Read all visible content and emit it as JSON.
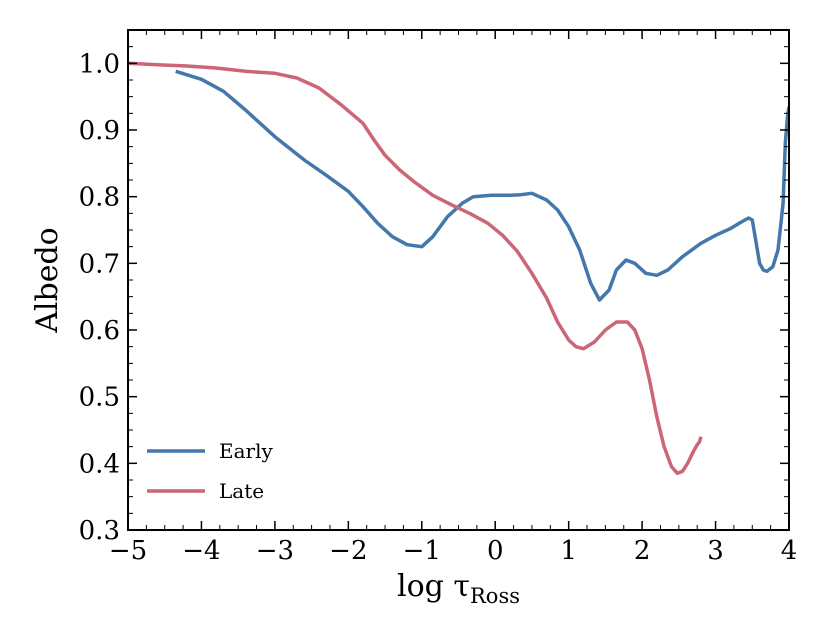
{
  "chart_data": {
    "type": "line",
    "title": "",
    "xlabel": "log τ",
    "xlabel_subscript": "Ross",
    "ylabel": "Albedo",
    "xlim": [
      -5,
      4
    ],
    "ylim": [
      0.3,
      1.05
    ],
    "grid": false,
    "legend": "bottom-left",
    "x_ticks": [
      -5,
      -4,
      -3,
      -2,
      -1,
      0,
      1,
      2,
      3,
      4
    ],
    "x_tick_labels": [
      "−5",
      "−4",
      "−3",
      "−2",
      "−1",
      "0",
      "1",
      "2",
      "3",
      "4"
    ],
    "y_ticks": [
      0.3,
      0.4,
      0.5,
      0.6,
      0.7,
      0.8,
      0.9,
      1.0
    ],
    "y_tick_labels": [
      "0.3",
      "0.4",
      "0.5",
      "0.6",
      "0.7",
      "0.8",
      "0.9",
      "1.0"
    ],
    "series": [
      {
        "name": "Early",
        "color": "#4477aa",
        "points": [
          [
            -4.35,
            0.988
          ],
          [
            -4.0,
            0.976
          ],
          [
            -3.7,
            0.958
          ],
          [
            -3.4,
            0.93
          ],
          [
            -3.0,
            0.89
          ],
          [
            -2.6,
            0.855
          ],
          [
            -2.3,
            0.832
          ],
          [
            -2.0,
            0.808
          ],
          [
            -1.8,
            0.785
          ],
          [
            -1.6,
            0.76
          ],
          [
            -1.4,
            0.74
          ],
          [
            -1.2,
            0.728
          ],
          [
            -1.0,
            0.725
          ],
          [
            -0.85,
            0.74
          ],
          [
            -0.65,
            0.77
          ],
          [
            -0.45,
            0.79
          ],
          [
            -0.3,
            0.8
          ],
          [
            -0.05,
            0.802
          ],
          [
            0.2,
            0.802
          ],
          [
            0.35,
            0.803
          ],
          [
            0.5,
            0.805
          ],
          [
            0.7,
            0.795
          ],
          [
            0.85,
            0.78
          ],
          [
            1.0,
            0.755
          ],
          [
            1.15,
            0.72
          ],
          [
            1.3,
            0.67
          ],
          [
            1.42,
            0.645
          ],
          [
            1.55,
            0.66
          ],
          [
            1.65,
            0.69
          ],
          [
            1.78,
            0.705
          ],
          [
            1.9,
            0.7
          ],
          [
            2.05,
            0.685
          ],
          [
            2.2,
            0.682
          ],
          [
            2.35,
            0.69
          ],
          [
            2.55,
            0.71
          ],
          [
            2.8,
            0.73
          ],
          [
            3.0,
            0.742
          ],
          [
            3.2,
            0.752
          ],
          [
            3.35,
            0.762
          ],
          [
            3.45,
            0.768
          ],
          [
            3.5,
            0.765
          ],
          [
            3.6,
            0.7
          ],
          [
            3.65,
            0.69
          ],
          [
            3.7,
            0.688
          ],
          [
            3.78,
            0.695
          ],
          [
            3.85,
            0.72
          ],
          [
            3.92,
            0.79
          ],
          [
            3.95,
            0.88
          ],
          [
            3.98,
            0.92
          ],
          [
            4.0,
            0.935
          ]
        ]
      },
      {
        "name": "Late",
        "color": "#cc6677",
        "points": [
          [
            -5.0,
            1.0
          ],
          [
            -4.6,
            0.998
          ],
          [
            -4.2,
            0.996
          ],
          [
            -3.8,
            0.993
          ],
          [
            -3.4,
            0.988
          ],
          [
            -3.0,
            0.985
          ],
          [
            -2.7,
            0.978
          ],
          [
            -2.4,
            0.963
          ],
          [
            -2.1,
            0.938
          ],
          [
            -1.8,
            0.91
          ],
          [
            -1.65,
            0.885
          ],
          [
            -1.5,
            0.862
          ],
          [
            -1.3,
            0.84
          ],
          [
            -1.1,
            0.822
          ],
          [
            -0.85,
            0.802
          ],
          [
            -0.6,
            0.788
          ],
          [
            -0.35,
            0.775
          ],
          [
            -0.1,
            0.76
          ],
          [
            0.1,
            0.742
          ],
          [
            0.3,
            0.718
          ],
          [
            0.5,
            0.685
          ],
          [
            0.7,
            0.648
          ],
          [
            0.85,
            0.612
          ],
          [
            1.0,
            0.585
          ],
          [
            1.1,
            0.575
          ],
          [
            1.2,
            0.572
          ],
          [
            1.35,
            0.582
          ],
          [
            1.5,
            0.6
          ],
          [
            1.65,
            0.612
          ],
          [
            1.8,
            0.612
          ],
          [
            1.9,
            0.6
          ],
          [
            2.0,
            0.572
          ],
          [
            2.1,
            0.525
          ],
          [
            2.2,
            0.47
          ],
          [
            2.3,
            0.425
          ],
          [
            2.4,
            0.395
          ],
          [
            2.48,
            0.385
          ],
          [
            2.55,
            0.388
          ],
          [
            2.62,
            0.4
          ],
          [
            2.7,
            0.418
          ],
          [
            2.75,
            0.428
          ],
          [
            2.78,
            0.432
          ],
          [
            2.8,
            0.44
          ]
        ]
      }
    ]
  }
}
